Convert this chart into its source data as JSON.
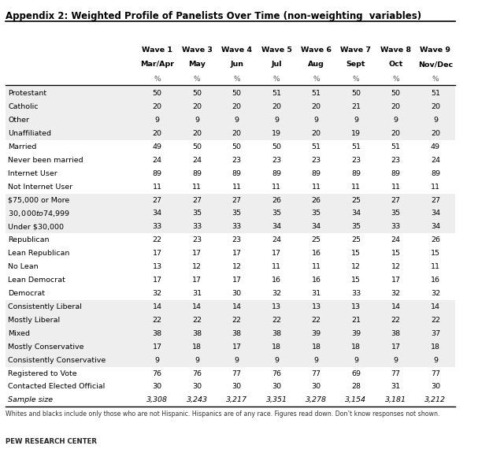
{
  "title": "Appendix 2: Weighted Profile of Panelists Over Time (non-weighting  variables)",
  "col_headers_line1": [
    "Wave 1",
    "Wave 3",
    "Wave 4",
    "Wave 5",
    "Wave 6",
    "Wave 7",
    "Wave 8",
    "Wave 9"
  ],
  "col_headers_line2": [
    "Mar/Apr",
    "May",
    "Jun",
    "Jul",
    "Aug",
    "Sept",
    "Oct",
    "Nov/Dec"
  ],
  "col_headers_line3": [
    "%",
    "%",
    "%",
    "%",
    "%",
    "%",
    "%",
    "%"
  ],
  "row_labels": [
    "Protestant",
    "Catholic",
    "Other",
    "Unaffiliated",
    "Married",
    "Never been married",
    "Internet User",
    "Not Internet User",
    "$75,000 or More",
    "$30,000 to $74,999",
    "Under $30,000",
    "Republican",
    "Lean Republican",
    "No Lean",
    "Lean Democrat",
    "Democrat",
    "Consistently Liberal",
    "Mostly Liberal",
    "Mixed",
    "Mostly Conservative",
    "Consistently Conservative",
    "Registered to Vote",
    "Contacted Elected Official",
    "Sample size"
  ],
  "data": [
    [
      50,
      50,
      50,
      51,
      51,
      50,
      50,
      51
    ],
    [
      20,
      20,
      20,
      20,
      20,
      21,
      20,
      20
    ],
    [
      9,
      9,
      9,
      9,
      9,
      9,
      9,
      9
    ],
    [
      20,
      20,
      20,
      19,
      20,
      19,
      20,
      20
    ],
    [
      49,
      50,
      50,
      50,
      51,
      51,
      51,
      49
    ],
    [
      24,
      24,
      23,
      23,
      23,
      23,
      23,
      24
    ],
    [
      89,
      89,
      89,
      89,
      89,
      89,
      89,
      89
    ],
    [
      11,
      11,
      11,
      11,
      11,
      11,
      11,
      11
    ],
    [
      27,
      27,
      27,
      26,
      26,
      25,
      27,
      27
    ],
    [
      34,
      35,
      35,
      35,
      35,
      34,
      35,
      34
    ],
    [
      33,
      33,
      33,
      34,
      34,
      35,
      33,
      34
    ],
    [
      22,
      23,
      23,
      24,
      25,
      25,
      24,
      26
    ],
    [
      17,
      17,
      17,
      17,
      16,
      15,
      15,
      15
    ],
    [
      13,
      12,
      12,
      11,
      11,
      12,
      12,
      11
    ],
    [
      17,
      17,
      17,
      16,
      16,
      15,
      17,
      16
    ],
    [
      32,
      31,
      30,
      32,
      31,
      33,
      32,
      32
    ],
    [
      14,
      14,
      14,
      13,
      13,
      13,
      14,
      14
    ],
    [
      22,
      22,
      22,
      22,
      22,
      21,
      22,
      22
    ],
    [
      38,
      38,
      38,
      38,
      39,
      39,
      38,
      37
    ],
    [
      17,
      18,
      17,
      18,
      18,
      18,
      17,
      18
    ],
    [
      9,
      9,
      9,
      9,
      9,
      9,
      9,
      9
    ],
    [
      76,
      76,
      77,
      76,
      77,
      69,
      77,
      77
    ],
    [
      30,
      30,
      30,
      30,
      30,
      28,
      31,
      30
    ],
    [
      "3,308",
      "3,243",
      "3,217",
      "3,351",
      "3,278",
      "3,154",
      "3,181",
      "3,212"
    ]
  ],
  "footer": "Whites and blacks include only those who are not Hispanic. Hispanics are of any race. Figures read down. Don’t know responses not shown.",
  "source": "PEW RESEARCH CENTER",
  "shaded_rows": [
    0,
    1,
    2,
    3,
    8,
    9,
    10,
    16,
    17,
    18,
    19,
    20
  ],
  "shaded_color": "#eeeeee"
}
